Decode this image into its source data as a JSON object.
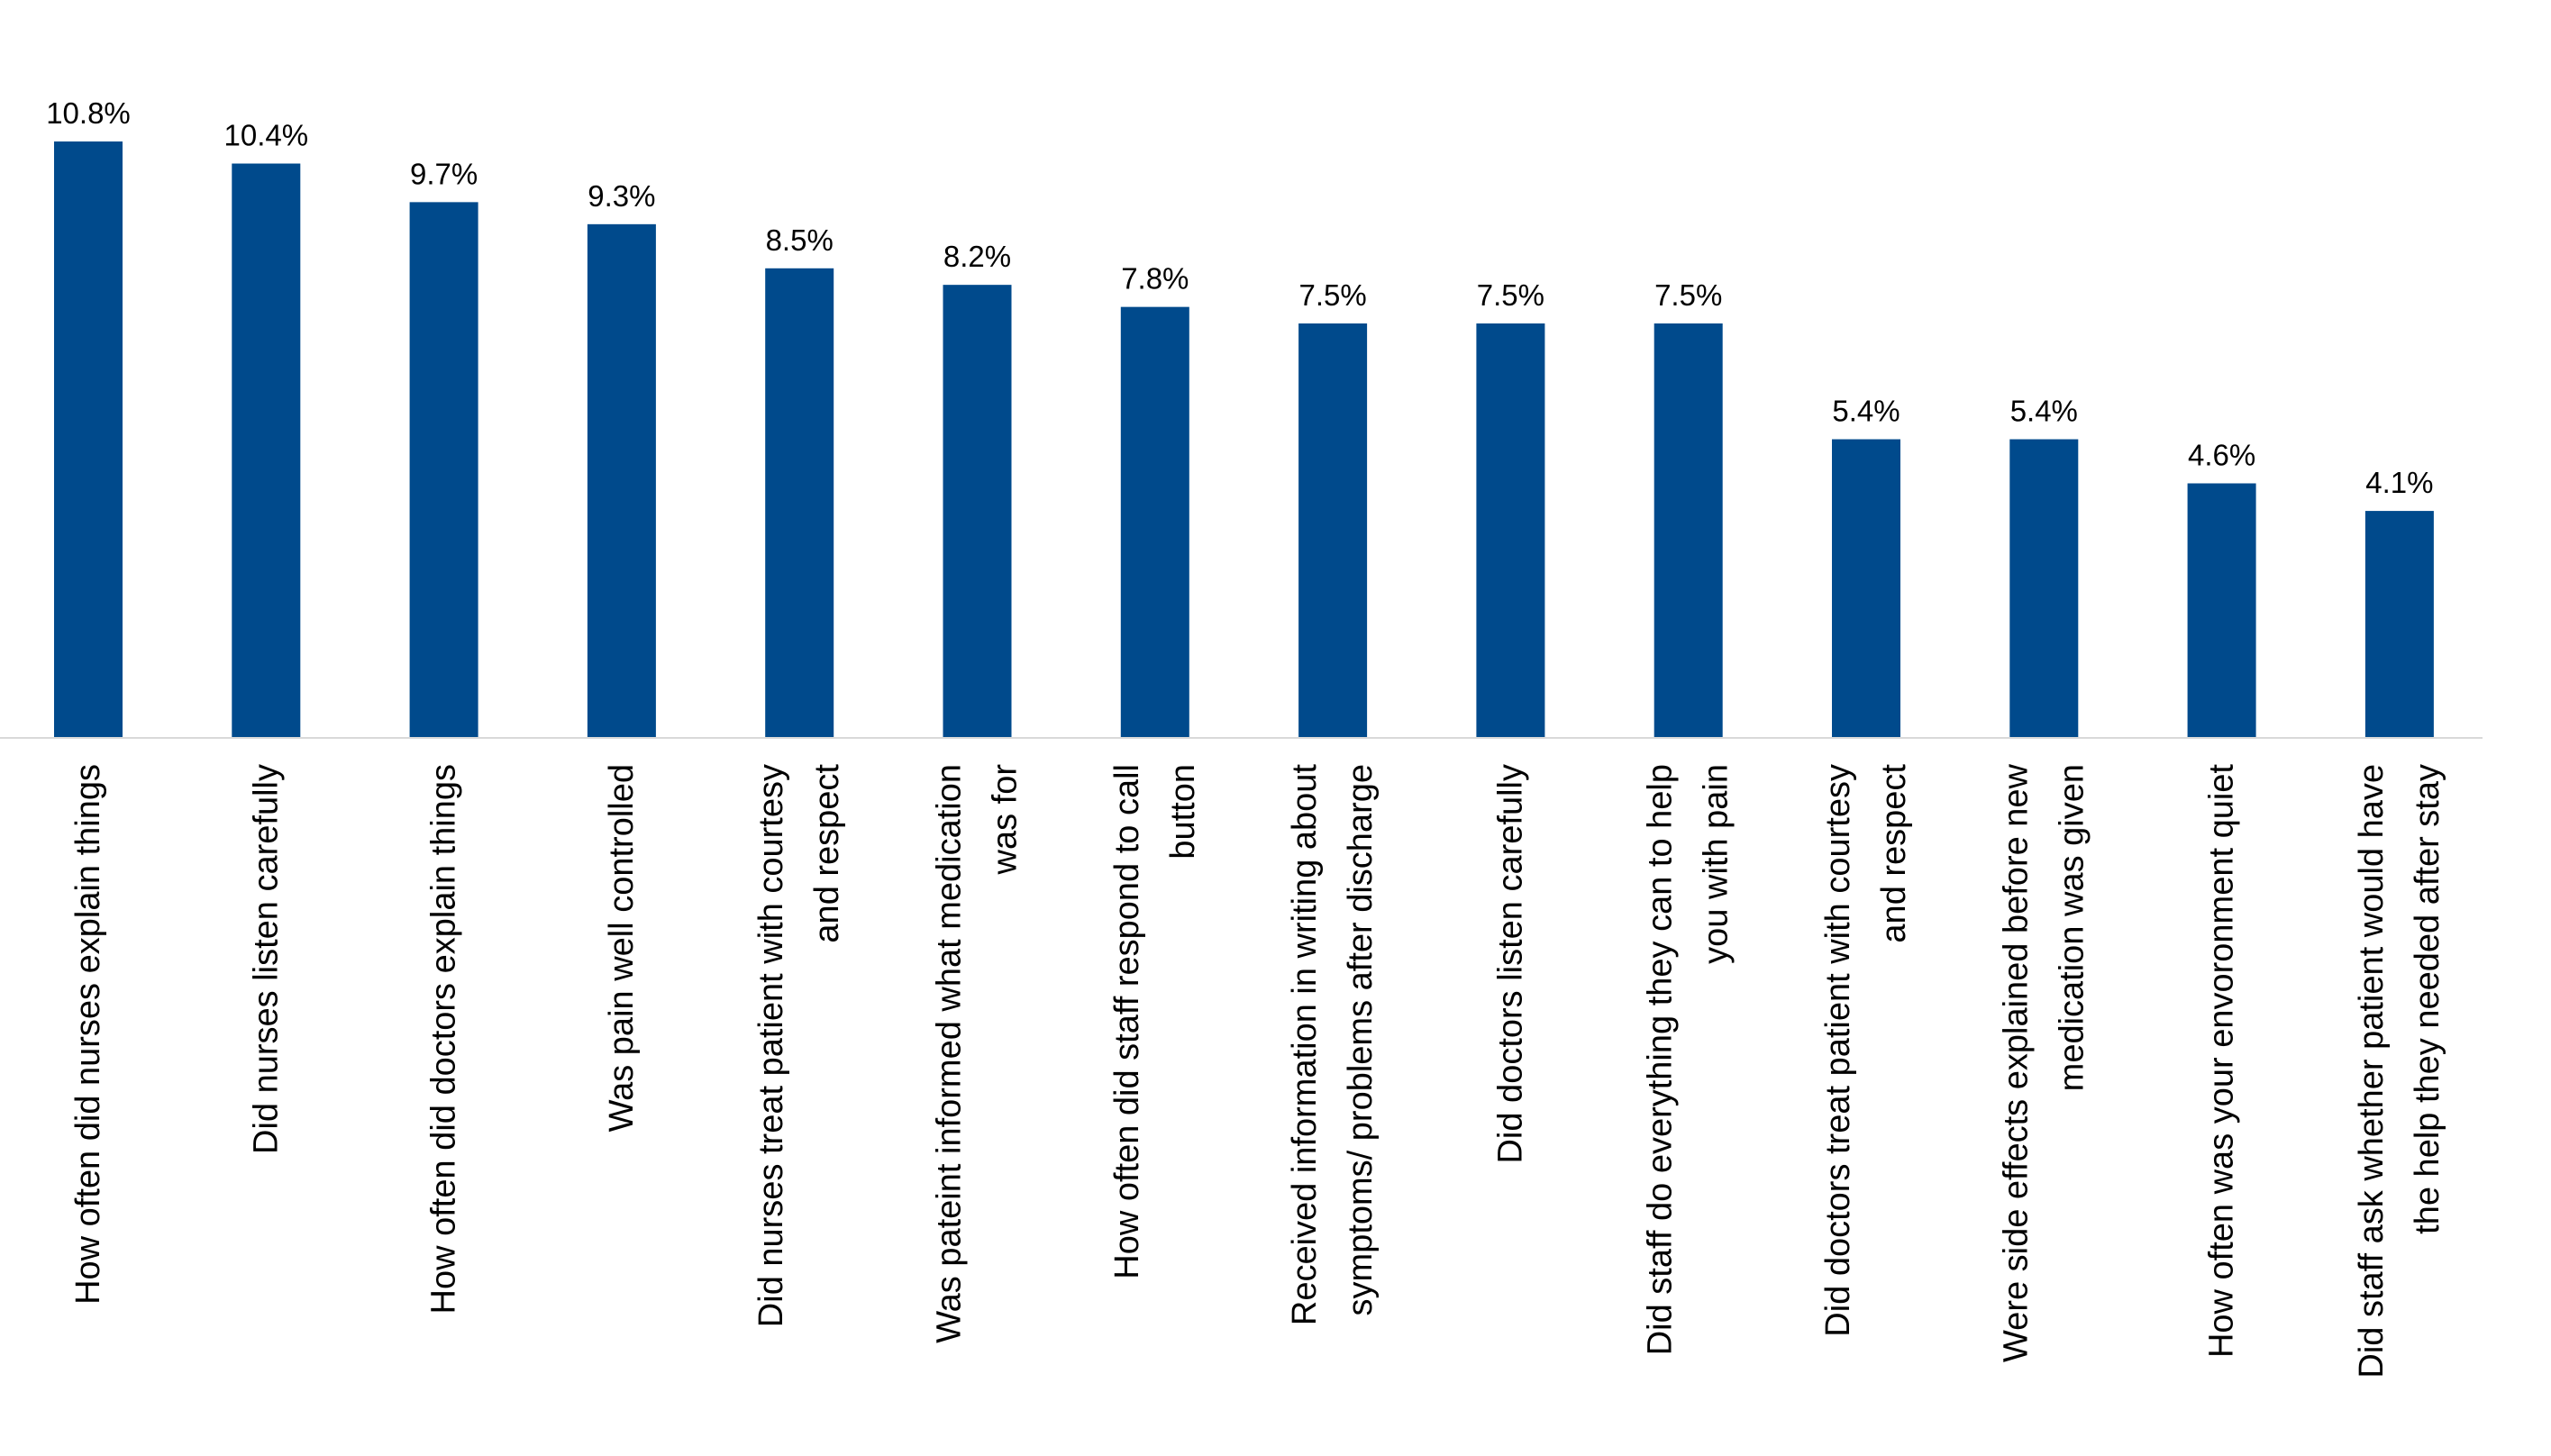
{
  "chart_data": {
    "type": "bar",
    "orientation": "vertical",
    "title": "",
    "xlabel": "",
    "ylabel": "",
    "ylim": [
      0,
      12
    ],
    "grid": false,
    "legend": "none",
    "bar_color": "#004A8C",
    "axis_color": "#D9D9D9",
    "value_format": "percent-1dp",
    "categories": [
      [
        "How often did nurses explain things"
      ],
      [
        "Did nurses listen carefully"
      ],
      [
        "How often did doctors explain things"
      ],
      [
        "Was pain well controlled"
      ],
      [
        "Did nurses treat patient with courtesy",
        "and respect"
      ],
      [
        "Was pateint informed what medication",
        "was for"
      ],
      [
        "How often did staff respond to call",
        "button"
      ],
      [
        "Received information in writing about",
        "symptoms/ problems after discharge"
      ],
      [
        "Did doctors listen carefully"
      ],
      [
        "Did staff do everything they can to help",
        "you with pain"
      ],
      [
        "Did doctors treat patient with courtesy",
        "and respect"
      ],
      [
        "Were side effects explained before new",
        "medication was given"
      ],
      [
        "How often was your envoronment quiet"
      ],
      [
        "Did staff ask whether patient would have",
        "the help they needed after stay"
      ]
    ],
    "values": [
      10.8,
      10.4,
      9.7,
      9.3,
      8.5,
      8.2,
      7.8,
      7.5,
      7.5,
      7.5,
      5.4,
      5.4,
      4.6,
      4.1
    ],
    "data_labels": [
      "10.8%",
      "10.4%",
      "9.7%",
      "9.3%",
      "8.5%",
      "8.2%",
      "7.8%",
      "7.5%",
      "7.5%",
      "7.5%",
      "5.4%",
      "5.4%",
      "4.6%",
      "4.1%"
    ]
  }
}
